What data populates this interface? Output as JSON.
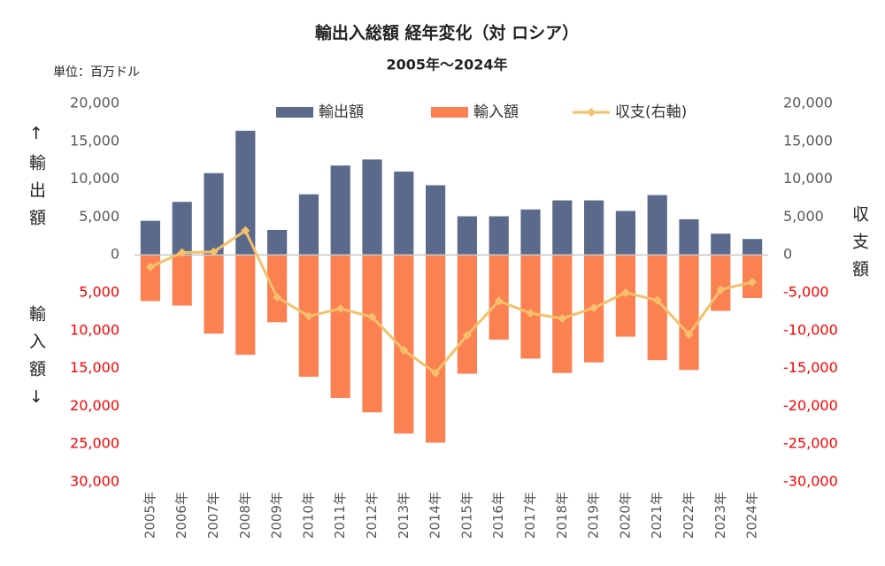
{
  "chart_data": {
    "type": "bar_line",
    "title": "輸出入総額 経年変化（対 ロシア）",
    "subtitle": "2005年～2024年",
    "unit_label": "単位：百万ドル",
    "ylabel_top": "↑輸出額",
    "ylabel_bottom": "輸入額↓",
    "y2label": "収支額",
    "legend": "top",
    "grid": false,
    "tick_color": "#595959",
    "negative_tick_color": "#ff0000",
    "categories": [
      "2005年",
      "2006年",
      "2007年",
      "2008年",
      "2009年",
      "2010年",
      "2011年",
      "2012年",
      "2013年",
      "2014年",
      "2015年",
      "2016年",
      "2017年",
      "2018年",
      "2019年",
      "2020年",
      "2021年",
      "2022年",
      "2023年",
      "2024年"
    ],
    "series": [
      {
        "name": "輸出額",
        "type": "bar",
        "color": "#5b6a8a",
        "values": [
          4500,
          7000,
          10800,
          16400,
          3300,
          8000,
          11800,
          12600,
          11000,
          9200,
          5100,
          5100,
          6000,
          7200,
          7200,
          5800,
          7900,
          4700,
          2800,
          2100
        ]
      },
      {
        "name": "輸入額",
        "type": "bar",
        "color": "#fb8052",
        "values": [
          -6100,
          -6700,
          -10400,
          -13200,
          -8900,
          -16100,
          -18900,
          -20800,
          -23600,
          -24800,
          -15700,
          -11200,
          -13700,
          -15600,
          -14200,
          -10800,
          -13900,
          -15200,
          -7400,
          -5700
        ]
      },
      {
        "name": "収支(右軸)",
        "type": "line",
        "axis": "y2",
        "color": "#f5c06b",
        "values": [
          -1600,
          300,
          400,
          3200,
          -5600,
          -8100,
          -7100,
          -8200,
          -12600,
          -15600,
          -10600,
          -6100,
          -7700,
          -8400,
          -7000,
          -5000,
          -6000,
          -10500,
          -4600,
          -3600
        ]
      }
    ],
    "ylim": [
      -30000,
      20000
    ],
    "yticks": [
      {
        "value": 20000,
        "label": "20,000"
      },
      {
        "value": 15000,
        "label": "15,000"
      },
      {
        "value": 10000,
        "label": "10,000"
      },
      {
        "value": 5000,
        "label": "5,000"
      },
      0,
      {
        "value": -5000,
        "label": "5,000"
      },
      {
        "value": -10000,
        "label": "10,000"
      },
      {
        "value": -15000,
        "label": "15,000"
      },
      {
        "value": -20000,
        "label": "20,000"
      },
      {
        "value": -25000,
        "label": "25,000"
      },
      {
        "value": -30000,
        "label": "30,000"
      }
    ],
    "y2lim": [
      -30000,
      20000
    ],
    "y2ticks": [
      {
        "value": 20000,
        "label": "20,000"
      },
      {
        "value": 15000,
        "label": "15,000"
      },
      {
        "value": 10000,
        "label": "10,000"
      },
      {
        "value": 5000,
        "label": "5,000"
      },
      0,
      {
        "value": -5000,
        "label": "-5,000"
      },
      {
        "value": -10000,
        "label": "-10,000"
      },
      {
        "value": -15000,
        "label": "-15,000"
      },
      {
        "value": -20000,
        "label": "-20,000"
      },
      {
        "value": -25000,
        "label": "-25,000"
      },
      {
        "value": -30000,
        "label": "-30,000"
      }
    ]
  }
}
